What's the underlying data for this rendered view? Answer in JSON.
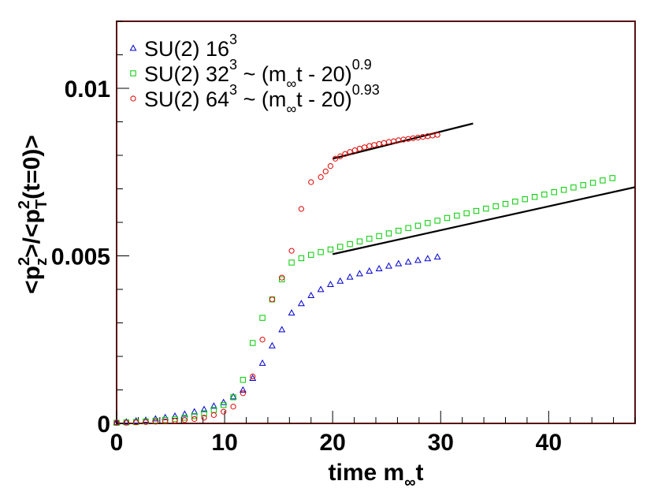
{
  "chart_data": {
    "type": "scatter",
    "title": "",
    "xlabel": "time m_∞t",
    "xlabel_parts": {
      "pre": "time m",
      "sub": "∞",
      "post": "t"
    },
    "ylabel": "<p_z^2>/<p_T^2(t=0)>",
    "ylabel_parts": {
      "a": "<p",
      "a_sup": "2",
      "a_sub": "z",
      "b": ">/<p",
      "b_sup": "2",
      "b_sub": "T",
      "c": "(t=0)>"
    },
    "xlim": [
      0,
      48
    ],
    "ylim": [
      0,
      0.012
    ],
    "x_ticks": [
      0,
      10,
      20,
      30,
      40
    ],
    "x_tick_labels": [
      "0",
      "10",
      "20",
      "30",
      "40"
    ],
    "y_ticks": [
      0,
      0.005,
      0.01
    ],
    "y_tick_labels": [
      "0",
      "0.005",
      "0.01"
    ],
    "legend_position": "top-left",
    "series": [
      {
        "name": "SU(2) 16^3",
        "legend": {
          "text": "SU(2) 16",
          "sup": "3",
          "fit": null
        },
        "marker": "triangle",
        "color": "#0000cc",
        "x": [
          0,
          0.9,
          1.8,
          2.7,
          3.6,
          4.5,
          5.4,
          6.3,
          7.2,
          8.1,
          9.0,
          9.9,
          10.8,
          11.7,
          12.6,
          13.5,
          14.4,
          15.3,
          16.2,
          17.1,
          18.0,
          18.9,
          19.8,
          20.7,
          21.6,
          22.5,
          23.4,
          24.3,
          25.2,
          26.1,
          27.0,
          27.9,
          28.8,
          29.7
        ],
        "y": [
          3e-05,
          5e-05,
          8e-05,
          0.0001,
          0.00014,
          0.00018,
          0.00022,
          0.00028,
          0.00035,
          0.00042,
          0.00052,
          0.00063,
          0.0008,
          0.001,
          0.00135,
          0.0018,
          0.00232,
          0.0028,
          0.0033,
          0.00358,
          0.00382,
          0.004,
          0.00415,
          0.00425,
          0.00437,
          0.00447,
          0.00455,
          0.00462,
          0.0047,
          0.00477,
          0.00482,
          0.00487,
          0.00492,
          0.00497
        ]
      },
      {
        "name": "SU(2) 32^3 ~ (m_∞t - 20)^0.9",
        "legend": {
          "text": "SU(2) 32",
          "sup": "3",
          "fit": {
            "pre": " ~ (m",
            "sub": "∞",
            "post": "t - 20)",
            "exp": "0.9"
          }
        },
        "marker": "square",
        "color": "#00cc00",
        "x": [
          0,
          0.9,
          1.8,
          2.7,
          3.6,
          4.5,
          5.4,
          6.3,
          7.2,
          8.1,
          9.0,
          9.9,
          10.8,
          11.7,
          12.6,
          13.5,
          14.4,
          15.3,
          16.2,
          17.1,
          18.0,
          18.9,
          19.8,
          20.7,
          21.6,
          22.5,
          23.4,
          24.3,
          25.2,
          26.1,
          27.0,
          27.9,
          28.8,
          29.7,
          30.6,
          31.5,
          32.4,
          33.3,
          34.2,
          35.1,
          36.0,
          36.9,
          37.8,
          38.7,
          39.6,
          40.5,
          41.4,
          42.3,
          43.2,
          44.1,
          45.0,
          45.9
        ],
        "y": [
          2e-05,
          3e-05,
          4e-05,
          6e-05,
          8e-05,
          0.0001,
          0.00013,
          0.00017,
          0.00022,
          0.0003,
          0.0004,
          0.00055,
          0.00078,
          0.0013,
          0.0024,
          0.00315,
          0.0037,
          0.0043,
          0.0048,
          0.00493,
          0.00503,
          0.00511,
          0.00519,
          0.00527,
          0.00535,
          0.00543,
          0.00551,
          0.00559,
          0.00567,
          0.00575,
          0.00583,
          0.0059,
          0.00598,
          0.00605,
          0.00613,
          0.0062,
          0.00627,
          0.00634,
          0.00641,
          0.00648,
          0.00655,
          0.00662,
          0.00669,
          0.00676,
          0.00683,
          0.0069,
          0.00697,
          0.00704,
          0.00711,
          0.00718,
          0.00725,
          0.00732
        ]
      },
      {
        "name": "SU(2) 64^3 ~ (m_∞t - 20)^0.93",
        "legend": {
          "text": "SU(2) 64",
          "sup": "3",
          "fit": {
            "pre": " ~ (m",
            "sub": "∞",
            "post": "t - 20)",
            "exp": "0.93"
          }
        },
        "marker": "circle",
        "color": "#dd0000",
        "x": [
          0,
          0.9,
          1.8,
          2.7,
          3.6,
          4.5,
          5.4,
          6.3,
          7.2,
          8.1,
          9.0,
          9.9,
          10.8,
          11.7,
          12.6,
          13.5,
          14.4,
          15.3,
          16.2,
          17.1,
          18.0,
          18.9,
          19.35,
          19.8,
          20.25,
          20.7,
          21.15,
          21.6,
          22.05,
          22.5,
          22.95,
          23.4,
          23.85,
          24.3,
          24.75,
          25.2,
          25.65,
          26.1,
          26.55,
          27.0,
          27.45,
          27.9,
          28.35,
          28.8,
          29.25,
          29.7
        ],
        "y": [
          2e-05,
          2e-05,
          3e-05,
          4e-05,
          5e-05,
          6e-05,
          8e-05,
          0.0001,
          0.00013,
          0.00017,
          0.00025,
          0.00035,
          0.0005,
          0.0009,
          0.0014,
          0.0025,
          0.0037,
          0.00435,
          0.00515,
          0.0064,
          0.0072,
          0.00735,
          0.00752,
          0.00768,
          0.0079,
          0.00797,
          0.00804,
          0.0081,
          0.00815,
          0.0082,
          0.00824,
          0.00828,
          0.00831,
          0.00834,
          0.00837,
          0.0084,
          0.00842,
          0.00845,
          0.00847,
          0.00849,
          0.00851,
          0.00853,
          0.00855,
          0.00857,
          0.00859,
          0.00861
        ]
      }
    ],
    "fit_lines": [
      {
        "name": "fit 32^3",
        "color": "#000000",
        "x": [
          20,
          48
        ],
        "y": [
          0.00505,
          0.00705
        ]
      },
      {
        "name": "fit 64^3",
        "color": "#000000",
        "x": [
          20,
          33
        ],
        "y": [
          0.0079,
          0.00895
        ]
      }
    ]
  }
}
